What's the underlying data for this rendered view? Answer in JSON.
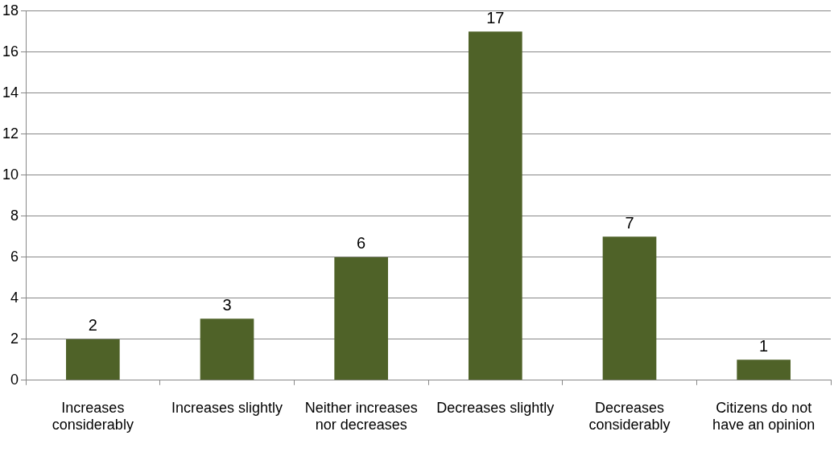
{
  "chart_data": {
    "type": "bar",
    "categories": [
      "Increases considerably",
      "Increases slightly",
      "Neither increases nor decreases",
      "Decreases slightly",
      "Decreases considerably",
      "Citizens do not have an opinion"
    ],
    "values": [
      2,
      3,
      6,
      17,
      7,
      1
    ],
    "color": "#4f6228",
    "ylim": [
      0,
      18
    ],
    "yticks": [
      0,
      2,
      4,
      6,
      8,
      10,
      12,
      14,
      16,
      18
    ],
    "grid": "y",
    "data_labels": true,
    "legend": false
  }
}
